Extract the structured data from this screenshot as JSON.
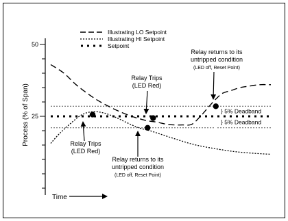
{
  "chart_data": {
    "type": "line",
    "title": "",
    "xlabel": "Time",
    "ylabel": "Process (% of Span)",
    "y_ticks": [
      {
        "value": 50,
        "label": "50"
      },
      {
        "value": 25,
        "label": "25"
      }
    ],
    "ylim": [
      0,
      55
    ],
    "xlim": [
      0,
      100
    ],
    "legend": {
      "placement": "top-center",
      "entries": [
        {
          "style": "dashed",
          "label": "Illustrating LO Setpoint"
        },
        {
          "style": "dotted",
          "label": "Illustrating HI Setpoint"
        },
        {
          "style": "square-dots",
          "label": "Setpoint"
        }
      ]
    },
    "series": [
      {
        "name": "Illustrating LO Setpoint",
        "style": "dashed",
        "x": [
          0,
          6,
          12,
          20,
          28,
          36,
          43,
          48,
          53,
          57,
          60,
          64,
          68,
          72,
          75,
          78,
          82,
          86,
          90,
          95,
          100
        ],
        "y": [
          43,
          40,
          35.7,
          31.2,
          27.8,
          25.2,
          23.6,
          23,
          22.2,
          22,
          22,
          22.2,
          25,
          28.5,
          31,
          33,
          34,
          35,
          35.5,
          36,
          36
        ]
      },
      {
        "name": "Illustrating HI Setpoint",
        "style": "dotted",
        "x": [
          0,
          4,
          9,
          14,
          19,
          24,
          29,
          34,
          40,
          45,
          55,
          65,
          75,
          85,
          95,
          100
        ],
        "y": [
          15.6,
          19,
          22.5,
          25.5,
          26.6,
          26.2,
          24.8,
          23,
          21,
          20,
          17.5,
          15.2,
          13.7,
          12.6,
          12,
          11.8
        ]
      }
    ],
    "setpoint": 25,
    "deadband_lines": [
      28.5,
      21
    ],
    "deadband_labels": [
      "} 5% Deadband",
      "} 5% Deadband"
    ],
    "markers": [
      {
        "x": 19,
        "y": 25.6
      },
      {
        "x": 46.5,
        "y": 24.4
      },
      {
        "x": 44,
        "y": 21
      },
      {
        "x": 75,
        "y": 28.5
      }
    ],
    "annotations": [
      {
        "lines": [
          "Relay Trips",
          "(LED Red)"
        ],
        "small": false
      },
      {
        "lines": [
          "Relay Trips",
          "(LED Red)"
        ],
        "small": false
      },
      {
        "lines": [
          "Relay returns to its",
          "untripped condition"
        ],
        "note": "(LED off, Reset Point)"
      },
      {
        "lines": [
          "Relay returns to its",
          "untripped condition"
        ],
        "note": "(LED off, Reset Point)"
      }
    ]
  }
}
